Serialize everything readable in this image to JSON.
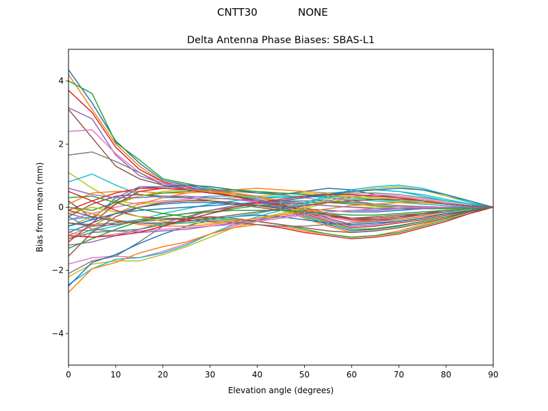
{
  "header": {
    "antenna": "CNTT30",
    "radome": "NONE"
  },
  "chart_data": {
    "type": "line",
    "title": "Delta Antenna Phase Biases: SBAS-L1",
    "xlabel": "Elevation angle (degrees)",
    "ylabel": "Bias from mean (mm)",
    "xlim": [
      0,
      90
    ],
    "ylim": [
      -5,
      5
    ],
    "xticks": [
      "0",
      "10",
      "20",
      "30",
      "40",
      "50",
      "60",
      "70",
      "80",
      "90"
    ],
    "yticks": [
      "−4",
      "−2",
      "0",
      "2",
      "4"
    ],
    "grid": false,
    "legend": "none",
    "x": [
      0,
      5,
      10,
      15,
      20,
      25,
      30,
      35,
      40,
      45,
      50,
      55,
      60,
      65,
      70,
      75,
      80,
      85,
      90
    ],
    "colors": [
      "#1f77b4",
      "#ff7f0e",
      "#2ca02c",
      "#d62728",
      "#9467bd",
      "#8c564b",
      "#e377c2",
      "#7f7f7f",
      "#bcbd22",
      "#17becf"
    ],
    "series": [
      {
        "values": [
          4.35,
          3.3,
          2.1,
          1.4,
          0.85,
          0.7,
          0.55,
          0.4,
          0.2,
          0.0,
          -0.3,
          -0.55,
          -0.75,
          -0.7,
          -0.6,
          -0.45,
          -0.3,
          -0.15,
          0.0
        ]
      },
      {
        "values": [
          4.2,
          3.1,
          2.0,
          1.3,
          0.8,
          0.6,
          0.5,
          0.35,
          0.15,
          -0.05,
          -0.35,
          -0.6,
          -0.8,
          -0.75,
          -0.65,
          -0.5,
          -0.35,
          -0.15,
          0.0
        ]
      },
      {
        "values": [
          4.0,
          3.6,
          2.05,
          1.5,
          0.9,
          0.75,
          0.6,
          0.45,
          0.25,
          0.05,
          -0.25,
          -0.5,
          -0.7,
          -0.68,
          -0.58,
          -0.45,
          -0.3,
          -0.12,
          0.0
        ]
      },
      {
        "values": [
          3.7,
          3.0,
          1.9,
          1.2,
          0.8,
          0.65,
          0.5,
          0.35,
          0.2,
          0.05,
          -0.2,
          -0.45,
          -0.65,
          -0.6,
          -0.5,
          -0.4,
          -0.25,
          -0.1,
          0.0
        ]
      },
      {
        "values": [
          3.15,
          2.8,
          1.65,
          1.0,
          0.75,
          0.6,
          0.5,
          0.4,
          0.25,
          0.1,
          -0.15,
          -0.4,
          -0.6,
          -0.55,
          -0.45,
          -0.35,
          -0.2,
          -0.1,
          0.0
        ]
      },
      {
        "values": [
          3.1,
          2.2,
          1.3,
          0.9,
          0.7,
          0.55,
          0.45,
          0.35,
          0.2,
          0.1,
          -0.1,
          -0.35,
          -0.55,
          -0.5,
          -0.45,
          -0.35,
          -0.2,
          -0.1,
          0.0
        ]
      },
      {
        "values": [
          2.4,
          2.45,
          1.7,
          1.1,
          0.75,
          0.7,
          0.65,
          0.55,
          0.45,
          0.4,
          0.3,
          0.2,
          0.1,
          0.05,
          0.0,
          -0.05,
          -0.05,
          -0.02,
          0.0
        ]
      },
      {
        "values": [
          1.65,
          1.75,
          1.45,
          1.1,
          0.7,
          0.6,
          0.55,
          0.5,
          0.45,
          0.45,
          0.4,
          0.3,
          0.2,
          0.1,
          0.05,
          0.02,
          0.0,
          0.0,
          0.0
        ]
      },
      {
        "values": [
          1.1,
          0.6,
          0.2,
          0.1,
          0.15,
          0.2,
          0.25,
          0.3,
          0.35,
          0.4,
          0.45,
          0.4,
          0.35,
          0.3,
          0.25,
          0.2,
          0.15,
          0.05,
          0.0
        ]
      },
      {
        "values": [
          0.8,
          1.05,
          0.7,
          0.4,
          0.3,
          0.3,
          0.35,
          0.35,
          0.3,
          0.3,
          0.35,
          0.45,
          0.5,
          0.55,
          0.5,
          0.4,
          0.25,
          0.1,
          0.0
        ]
      },
      {
        "values": [
          0.2,
          -0.35,
          0.2,
          0.6,
          0.65,
          0.7,
          0.65,
          0.55,
          0.45,
          0.4,
          0.5,
          0.6,
          0.55,
          0.4,
          0.3,
          0.2,
          0.1,
          0.05,
          0.0
        ]
      },
      {
        "values": [
          0.1,
          0.45,
          0.5,
          0.5,
          0.45,
          0.45,
          0.5,
          0.55,
          0.6,
          0.55,
          0.5,
          0.45,
          0.4,
          0.35,
          0.3,
          0.25,
          0.15,
          0.05,
          0.0
        ]
      },
      {
        "values": [
          0.0,
          -0.1,
          0.15,
          0.35,
          0.45,
          0.5,
          0.55,
          0.55,
          0.5,
          0.45,
          0.4,
          0.35,
          0.3,
          0.25,
          0.2,
          0.15,
          0.1,
          0.05,
          0.0
        ]
      },
      {
        "values": [
          -0.1,
          0.2,
          0.45,
          0.6,
          0.6,
          0.55,
          0.45,
          0.35,
          0.2,
          0.05,
          -0.1,
          -0.25,
          -0.35,
          -0.35,
          -0.3,
          -0.25,
          -0.15,
          -0.05,
          0.0
        ]
      },
      {
        "values": [
          -0.2,
          -0.4,
          0.3,
          0.65,
          0.65,
          0.6,
          0.55,
          0.45,
          0.3,
          0.15,
          -0.05,
          -0.2,
          -0.35,
          -0.4,
          -0.35,
          -0.25,
          -0.15,
          -0.05,
          0.0
        ]
      },
      {
        "values": [
          -0.3,
          0.1,
          0.35,
          0.4,
          0.35,
          0.3,
          0.2,
          0.1,
          0.0,
          -0.1,
          -0.2,
          -0.3,
          -0.35,
          -0.3,
          -0.25,
          -0.2,
          -0.1,
          -0.05,
          0.0
        ]
      },
      {
        "values": [
          -0.4,
          -0.2,
          0.0,
          0.15,
          0.2,
          0.25,
          0.3,
          0.25,
          0.15,
          0.0,
          -0.15,
          -0.3,
          -0.45,
          -0.45,
          -0.4,
          -0.3,
          -0.2,
          -0.1,
          0.0
        ]
      },
      {
        "values": [
          -0.5,
          -0.55,
          -0.5,
          -0.4,
          -0.3,
          -0.2,
          -0.1,
          0.0,
          0.1,
          0.2,
          0.3,
          0.4,
          0.45,
          0.45,
          0.4,
          0.3,
          0.2,
          0.1,
          0.0
        ]
      },
      {
        "values": [
          -0.6,
          -0.3,
          0.1,
          0.35,
          0.5,
          0.55,
          0.5,
          0.4,
          0.3,
          0.2,
          0.1,
          0.05,
          0.0,
          0.0,
          0.0,
          0.0,
          0.0,
          0.0,
          0.0
        ]
      },
      {
        "values": [
          -0.7,
          -0.75,
          -0.6,
          -0.4,
          -0.2,
          -0.05,
          0.1,
          0.2,
          0.3,
          0.35,
          0.35,
          0.3,
          0.25,
          0.2,
          0.15,
          0.1,
          0.05,
          0.02,
          0.0
        ]
      },
      {
        "values": [
          -0.8,
          -0.5,
          -0.2,
          0.0,
          0.1,
          0.15,
          0.15,
          0.1,
          0.05,
          0.0,
          -0.05,
          -0.1,
          -0.15,
          -0.15,
          -0.1,
          -0.05,
          -0.02,
          0.0,
          0.0
        ]
      },
      {
        "values": [
          -0.9,
          -0.6,
          -0.2,
          0.1,
          0.3,
          0.45,
          0.5,
          0.45,
          0.35,
          0.2,
          0.0,
          -0.2,
          -0.4,
          -0.45,
          -0.4,
          -0.3,
          -0.2,
          -0.1,
          0.0
        ]
      },
      {
        "values": [
          -1.0,
          -0.8,
          -0.75,
          -0.7,
          -0.55,
          -0.4,
          -0.2,
          -0.05,
          0.05,
          0.1,
          0.15,
          0.15,
          0.1,
          0.05,
          0.0,
          -0.05,
          -0.05,
          -0.02,
          0.0
        ]
      },
      {
        "values": [
          -1.1,
          -0.5,
          0.1,
          0.5,
          0.6,
          0.55,
          0.45,
          0.35,
          0.2,
          0.05,
          -0.1,
          -0.25,
          -0.4,
          -0.4,
          -0.35,
          -0.25,
          -0.15,
          -0.05,
          0.0
        ]
      },
      {
        "values": [
          -1.2,
          -1.1,
          -0.9,
          -0.7,
          -0.5,
          -0.3,
          -0.1,
          0.0,
          0.1,
          0.15,
          0.2,
          0.2,
          0.15,
          0.1,
          0.05,
          0.02,
          0.0,
          0.0,
          0.0
        ]
      },
      {
        "values": [
          -1.55,
          -0.8,
          -0.3,
          0.0,
          0.15,
          0.2,
          0.2,
          0.15,
          0.05,
          -0.05,
          -0.15,
          -0.25,
          -0.35,
          -0.35,
          -0.3,
          -0.2,
          -0.15,
          -0.05,
          0.0
        ]
      },
      {
        "values": [
          -1.8,
          -1.6,
          -1.55,
          -1.6,
          -1.4,
          -1.15,
          -0.85,
          -0.6,
          -0.4,
          -0.2,
          0.0,
          0.2,
          0.35,
          0.4,
          0.35,
          0.25,
          0.15,
          0.05,
          0.0
        ]
      },
      {
        "values": [
          -2.1,
          -1.7,
          -1.55,
          -1.1,
          -0.6,
          -0.35,
          -0.1,
          0.05,
          0.15,
          0.2,
          0.2,
          0.2,
          0.15,
          0.1,
          0.05,
          0.02,
          0.0,
          0.0,
          0.0
        ]
      },
      {
        "values": [
          -2.2,
          -1.8,
          -1.7,
          -1.7,
          -1.5,
          -1.25,
          -0.95,
          -0.65,
          -0.45,
          -0.25,
          -0.05,
          0.15,
          0.3,
          0.35,
          0.3,
          0.2,
          0.1,
          0.05,
          0.0
        ]
      },
      {
        "values": [
          -2.45,
          -1.95,
          -1.65,
          -1.6,
          -1.45,
          -1.2,
          -0.85,
          -0.55,
          -0.3,
          -0.1,
          0.1,
          0.3,
          0.5,
          0.55,
          0.5,
          0.35,
          0.2,
          0.1,
          0.0
        ]
      },
      {
        "values": [
          -2.5,
          -1.75,
          -1.5,
          -1.15,
          -0.85,
          -0.6,
          -0.4,
          -0.3,
          -0.25,
          -0.3,
          -0.4,
          -0.5,
          -0.55,
          -0.5,
          -0.45,
          -0.35,
          -0.2,
          -0.1,
          0.0
        ]
      },
      {
        "values": [
          -2.7,
          -1.95,
          -1.75,
          -1.45,
          -1.25,
          -1.1,
          -0.85,
          -0.65,
          -0.55,
          -0.6,
          -0.75,
          -0.85,
          -0.95,
          -0.9,
          -0.75,
          -0.55,
          -0.35,
          -0.15,
          0.0
        ]
      },
      {
        "values": [
          0.3,
          0.35,
          0.15,
          -0.05,
          -0.2,
          -0.3,
          -0.35,
          -0.4,
          -0.45,
          -0.55,
          -0.7,
          -0.85,
          -0.95,
          -0.9,
          -0.8,
          -0.6,
          -0.4,
          -0.2,
          0.0
        ]
      },
      {
        "values": [
          0.5,
          0.2,
          -0.1,
          -0.3,
          -0.35,
          -0.4,
          -0.45,
          -0.5,
          -0.55,
          -0.65,
          -0.8,
          -0.9,
          -1.0,
          -0.95,
          -0.85,
          -0.65,
          -0.45,
          -0.2,
          0.0
        ]
      },
      {
        "values": [
          -0.3,
          -0.7,
          -0.75,
          -0.8,
          -0.75,
          -0.7,
          -0.6,
          -0.5,
          -0.4,
          -0.3,
          -0.2,
          -0.15,
          -0.1,
          -0.1,
          -0.05,
          -0.02,
          0.0,
          0.0,
          0.0
        ]
      },
      {
        "values": [
          -0.5,
          -0.6,
          -0.55,
          -0.45,
          -0.4,
          -0.35,
          -0.3,
          -0.35,
          -0.45,
          -0.55,
          -0.65,
          -0.75,
          -0.8,
          -0.75,
          -0.65,
          -0.5,
          -0.35,
          -0.15,
          0.0
        ]
      },
      {
        "values": [
          -0.8,
          -0.95,
          -0.85,
          -0.75,
          -0.7,
          -0.65,
          -0.6,
          -0.55,
          -0.45,
          -0.35,
          -0.25,
          -0.15,
          -0.1,
          -0.05,
          0.0,
          0.0,
          0.0,
          0.0,
          0.0
        ]
      },
      {
        "values": [
          -1.0,
          -0.7,
          -0.5,
          -0.4,
          -0.35,
          -0.35,
          -0.4,
          -0.45,
          -0.55,
          -0.6,
          -0.6,
          -0.55,
          -0.5,
          -0.45,
          -0.35,
          -0.25,
          -0.15,
          -0.05,
          0.0
        ]
      },
      {
        "values": [
          -0.2,
          0.0,
          -0.15,
          -0.3,
          -0.45,
          -0.5,
          -0.5,
          -0.45,
          -0.35,
          -0.2,
          0.0,
          0.25,
          0.5,
          0.6,
          0.65,
          0.55,
          0.35,
          0.15,
          0.0
        ]
      },
      {
        "values": [
          -0.4,
          -0.3,
          -0.4,
          -0.5,
          -0.55,
          -0.5,
          -0.4,
          -0.3,
          -0.2,
          -0.05,
          0.15,
          0.35,
          0.55,
          0.65,
          0.7,
          0.6,
          0.4,
          0.15,
          0.0
        ]
      },
      {
        "values": [
          -0.6,
          -0.4,
          -0.2,
          -0.1,
          -0.05,
          0.0,
          0.05,
          0.1,
          0.15,
          0.2,
          0.3,
          0.4,
          0.5,
          0.55,
          0.6,
          0.55,
          0.4,
          0.2,
          0.0
        ]
      },
      {
        "values": [
          0.0,
          -0.2,
          -0.4,
          -0.55,
          -0.6,
          -0.6,
          -0.55,
          -0.45,
          -0.35,
          -0.25,
          -0.15,
          -0.05,
          0.05,
          0.1,
          0.15,
          0.15,
          0.1,
          0.05,
          0.0
        ]
      },
      {
        "values": [
          -1.3,
          -1.0,
          -0.7,
          -0.45,
          -0.3,
          -0.2,
          -0.15,
          -0.1,
          -0.1,
          -0.1,
          -0.15,
          -0.2,
          -0.25,
          -0.25,
          -0.2,
          -0.15,
          -0.1,
          -0.05,
          0.0
        ]
      },
      {
        "values": [
          -0.9,
          -0.95,
          -0.9,
          -0.8,
          -0.6,
          -0.4,
          -0.2,
          0.0,
          0.15,
          0.25,
          0.35,
          0.4,
          0.4,
          0.35,
          0.3,
          0.2,
          0.1,
          0.05,
          0.0
        ]
      },
      {
        "values": [
          0.6,
          0.4,
          0.3,
          0.3,
          0.35,
          0.35,
          0.3,
          0.25,
          0.2,
          0.15,
          0.1,
          0.05,
          0.0,
          -0.05,
          -0.05,
          -0.05,
          -0.02,
          0.0,
          0.0
        ]
      },
      {
        "values": [
          -0.1,
          -0.3,
          -0.45,
          -0.5,
          -0.5,
          -0.45,
          -0.35,
          -0.25,
          -0.15,
          -0.05,
          0.05,
          0.15,
          0.2,
          0.25,
          0.25,
          0.2,
          0.1,
          0.05,
          0.0
        ]
      }
    ]
  }
}
